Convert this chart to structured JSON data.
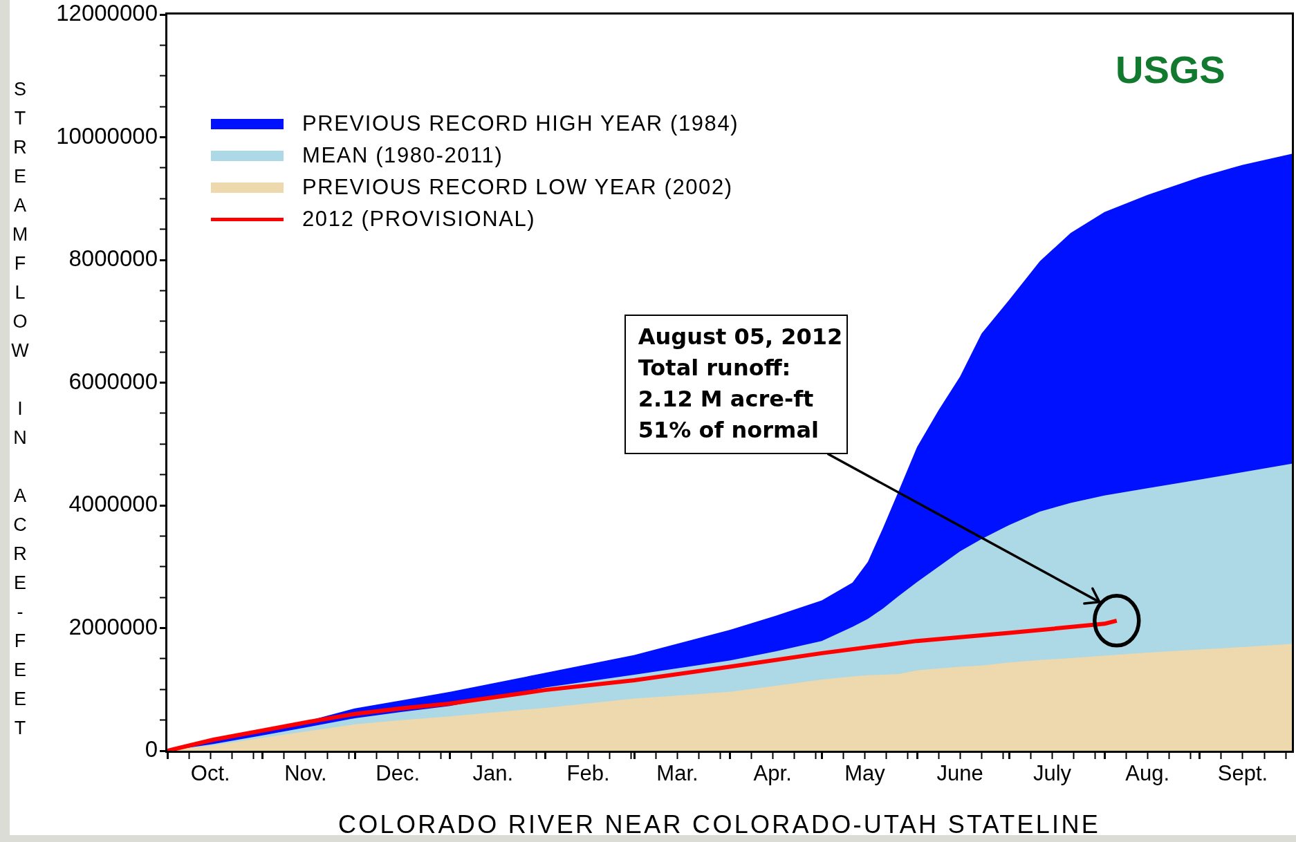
{
  "chart_data": {
    "type": "area",
    "title": "COLORADO RIVER NEAR COLORADO-UTAH STATELINE",
    "ylabel": "STREAMFLOW IN ACRE-FEET",
    "x": [
      "2011-10-01",
      "2011-10-16",
      "2011-11-01",
      "2011-11-16",
      "2011-12-01",
      "2011-12-16",
      "2012-01-01",
      "2012-02-01",
      "2012-03-01",
      "2012-04-01",
      "2012-04-16",
      "2012-05-01",
      "2012-05-11",
      "2012-05-16",
      "2012-05-21",
      "2012-05-26",
      "2012-06-01",
      "2012-06-08",
      "2012-06-15",
      "2012-06-22",
      "2012-07-01",
      "2012-07-11",
      "2012-07-21",
      "2012-08-01",
      "2012-08-15",
      "2012-09-01",
      "2012-09-15",
      "2012-10-01"
    ],
    "series": [
      {
        "name": "PREVIOUS RECORD HIGH YEAR (1984)",
        "color": "#0011ff",
        "values": [
          0,
          180000,
          340000,
          490000,
          690000,
          820000,
          960000,
          1270000,
          1560000,
          1970000,
          2200000,
          2450000,
          2740000,
          3080000,
          3640000,
          4230000,
          4950000,
          5550000,
          6100000,
          6800000,
          7350000,
          7980000,
          8440000,
          8780000,
          9060000,
          9350000,
          9550000,
          9730000
        ]
      },
      {
        "name": "MEAN (1980-2011)",
        "color": "#add8e6",
        "values": [
          0,
          110000,
          250000,
          390000,
          530000,
          630000,
          730000,
          1030000,
          1240000,
          1470000,
          1620000,
          1790000,
          2020000,
          2150000,
          2320000,
          2520000,
          2750000,
          3000000,
          3250000,
          3450000,
          3680000,
          3900000,
          4040000,
          4160000,
          4280000,
          4420000,
          4540000,
          4680000
        ]
      },
      {
        "name": "PREVIOUS RECORD LOW YEAR (2002)",
        "color": "#eed8ae",
        "values": [
          0,
          90000,
          210000,
          320000,
          430000,
          500000,
          560000,
          700000,
          850000,
          960000,
          1060000,
          1160000,
          1210000,
          1230000,
          1240000,
          1250000,
          1310000,
          1340000,
          1370000,
          1390000,
          1440000,
          1480000,
          1510000,
          1550000,
          1600000,
          1650000,
          1690000,
          1740000
        ]
      },
      {
        "name": "2012 (PROVISIONAL)",
        "type": "line",
        "color": "#ff0000",
        "x": [
          "2011-10-01",
          "2011-10-16",
          "2011-11-01",
          "2011-11-16",
          "2011-12-01",
          "2011-12-16",
          "2012-01-01",
          "2012-02-01",
          "2012-03-01",
          "2012-04-01",
          "2012-05-01",
          "2012-06-01",
          "2012-07-01",
          "2012-08-01",
          "2012-08-05"
        ],
        "values": [
          0,
          180000,
          330000,
          470000,
          600000,
          690000,
          770000,
          990000,
          1150000,
          1370000,
          1590000,
          1790000,
          1920000,
          2070000,
          2120000
        ]
      }
    ],
    "xlim": [
      "2011-10-01",
      "2012-10-01"
    ],
    "xticks": [
      {
        "value": "2011-10-01",
        "label": null
      },
      {
        "value": "2011-10-08",
        "label": null
      },
      {
        "value": "2011-10-15",
        "label": "Oct."
      },
      {
        "value": "2011-10-22",
        "label": null
      },
      {
        "value": "2011-10-29",
        "label": null
      },
      {
        "value": "2011-11-01",
        "label": null
      },
      {
        "value": "2011-11-08",
        "label": null
      },
      {
        "value": "2011-11-15",
        "label": "Nov."
      },
      {
        "value": "2011-11-22",
        "label": null
      },
      {
        "value": "2011-11-29",
        "label": null
      },
      {
        "value": "2011-12-01",
        "label": null
      },
      {
        "value": "2011-12-08",
        "label": null
      },
      {
        "value": "2011-12-15",
        "label": "Dec."
      },
      {
        "value": "2011-12-22",
        "label": null
      },
      {
        "value": "2011-12-29",
        "label": null
      },
      {
        "value": "2012-01-01",
        "label": null
      },
      {
        "value": "2012-01-08",
        "label": null
      },
      {
        "value": "2012-01-15",
        "label": "Jan."
      },
      {
        "value": "2012-01-22",
        "label": null
      },
      {
        "value": "2012-01-29",
        "label": null
      },
      {
        "value": "2012-02-01",
        "label": null
      },
      {
        "value": "2012-02-08",
        "label": null
      },
      {
        "value": "2012-02-15",
        "label": "Feb."
      },
      {
        "value": "2012-02-22",
        "label": null
      },
      {
        "value": "2012-02-29",
        "label": null
      },
      {
        "value": "2012-03-01",
        "label": null
      },
      {
        "value": "2012-03-08",
        "label": null
      },
      {
        "value": "2012-03-15",
        "label": "Mar."
      },
      {
        "value": "2012-03-22",
        "label": null
      },
      {
        "value": "2012-03-29",
        "label": null
      },
      {
        "value": "2012-04-01",
        "label": null
      },
      {
        "value": "2012-04-08",
        "label": null
      },
      {
        "value": "2012-04-15",
        "label": "Apr."
      },
      {
        "value": "2012-04-22",
        "label": null
      },
      {
        "value": "2012-04-29",
        "label": null
      },
      {
        "value": "2012-05-01",
        "label": null
      },
      {
        "value": "2012-05-08",
        "label": null
      },
      {
        "value": "2012-05-15",
        "label": "May"
      },
      {
        "value": "2012-05-22",
        "label": null
      },
      {
        "value": "2012-05-29",
        "label": null
      },
      {
        "value": "2012-06-01",
        "label": null
      },
      {
        "value": "2012-06-08",
        "label": null
      },
      {
        "value": "2012-06-15",
        "label": "June"
      },
      {
        "value": "2012-06-22",
        "label": null
      },
      {
        "value": "2012-06-29",
        "label": null
      },
      {
        "value": "2012-07-01",
        "label": null
      },
      {
        "value": "2012-07-08",
        "label": null
      },
      {
        "value": "2012-07-15",
        "label": "July"
      },
      {
        "value": "2012-07-22",
        "label": null
      },
      {
        "value": "2012-07-29",
        "label": null
      },
      {
        "value": "2012-08-01",
        "label": null
      },
      {
        "value": "2012-08-08",
        "label": null
      },
      {
        "value": "2012-08-15",
        "label": "Aug."
      },
      {
        "value": "2012-08-22",
        "label": null
      },
      {
        "value": "2012-08-29",
        "label": null
      },
      {
        "value": "2012-09-01",
        "label": null
      },
      {
        "value": "2012-09-08",
        "label": null
      },
      {
        "value": "2012-09-15",
        "label": "Sept."
      },
      {
        "value": "2012-09-22",
        "label": null
      },
      {
        "value": "2012-09-29",
        "label": null
      }
    ],
    "ylim": [
      0,
      12000000
    ],
    "yticks": [
      0,
      {
        "value": 500000,
        "label": null
      },
      {
        "value": 1000000,
        "label": null
      },
      {
        "value": 1500000,
        "label": null
      },
      2000000,
      {
        "value": 2500000,
        "label": null
      },
      {
        "value": 3000000,
        "label": null
      },
      {
        "value": 3500000,
        "label": null
      },
      4000000,
      {
        "value": 4500000,
        "label": null
      },
      {
        "value": 5000000,
        "label": null
      },
      {
        "value": 5500000,
        "label": null
      },
      6000000,
      {
        "value": 6500000,
        "label": null
      },
      {
        "value": 7000000,
        "label": null
      },
      {
        "value": 7500000,
        "label": null
      },
      8000000,
      {
        "value": 8500000,
        "label": null
      },
      {
        "value": 9000000,
        "label": null
      },
      {
        "value": 9500000,
        "label": null
      },
      10000000,
      {
        "value": 10500000,
        "label": null
      },
      {
        "value": 11000000,
        "label": null
      },
      {
        "value": 11500000,
        "label": null
      },
      12000000
    ],
    "legend": "top left",
    "marker": "none",
    "annotations": [
      "August 05, 2012\nTotal runoff:\n2.12 M acre-ft\n51% of normal",
      "USGS"
    ]
  }
}
